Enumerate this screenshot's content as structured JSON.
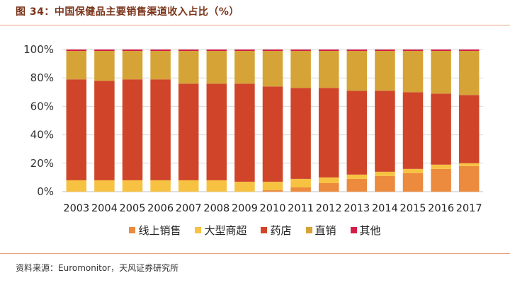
{
  "header": {
    "title": "图 34：中国保健品主要销售渠道收入占比（%）"
  },
  "footer": {
    "source": "资料来源：Euromonitor，天风证券研究所"
  },
  "chart_data": {
    "type": "bar",
    "stacked": true,
    "title": "",
    "categories": [
      "2003",
      "2004",
      "2005",
      "2006",
      "2007",
      "2008",
      "2009",
      "2010",
      "2011",
      "2012",
      "2013",
      "2014",
      "2015",
      "2016",
      "2017"
    ],
    "ylim": [
      0,
      100
    ],
    "yticks": [
      "0%",
      "20%",
      "40%",
      "60%",
      "80%",
      "100%"
    ],
    "legend_position": "bottom",
    "series": [
      {
        "name": "线上销售",
        "color": "#ec8a3e",
        "values": [
          0,
          0,
          0,
          0,
          0,
          0,
          0,
          1,
          3,
          6,
          9,
          11,
          13,
          16,
          18
        ]
      },
      {
        "name": "大型商超",
        "color": "#f7c242",
        "values": [
          8,
          8,
          8,
          8,
          8,
          8,
          7,
          6,
          6,
          4,
          3,
          3,
          3,
          3,
          2
        ]
      },
      {
        "name": "药店",
        "color": "#d0452a",
        "values": [
          71,
          70,
          71,
          71,
          68,
          68,
          69,
          67,
          64,
          63,
          59,
          57,
          54,
          50,
          48
        ]
      },
      {
        "name": "直销",
        "color": "#d6a436",
        "values": [
          20,
          21,
          20,
          20,
          23,
          23,
          23,
          25,
          26,
          26,
          28,
          28,
          29,
          30,
          31
        ]
      },
      {
        "name": "其他",
        "color": "#d51e4a",
        "values": [
          1,
          1,
          1,
          1,
          1,
          1,
          1,
          1,
          1,
          1,
          1,
          1,
          1,
          1,
          1
        ]
      }
    ]
  }
}
